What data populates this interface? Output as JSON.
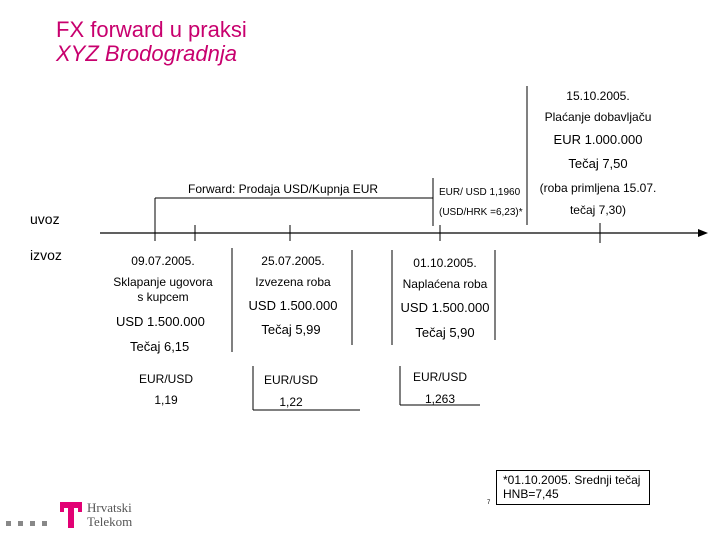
{
  "title": {
    "line1": "FX forward u praksi",
    "line2": "XYZ Brodogradnja"
  },
  "side_labels": {
    "uvoz": "uvoz",
    "izvoz": "izvoz"
  },
  "forward_label": "Forward: Prodaja USD/Kupnja EUR",
  "import_event": {
    "date": "15.10.2005.",
    "desc": "Plaćanje dobavljaču",
    "amount": "EUR 1.000.000",
    "rate": "Tečaj 7,50",
    "note_line1": "(roba primljena 15.07.",
    "note_line2": "tečaj 7,30)",
    "eur_usd": "EUR/ USD 1,1960",
    "usd_hrk": "(USD/HRK =6,23)*"
  },
  "export_events": [
    {
      "date": "09.07.2005.",
      "desc_line1": "Sklapanje ugovora",
      "desc_line2": "s kupcem",
      "amount": "USD 1.500.000",
      "rate": "Tečaj 6,15",
      "pair": "EUR/USD",
      "pair_rate": "1,19"
    },
    {
      "date": "25.07.2005.",
      "desc_line1": "Izvezena roba",
      "amount": "USD 1.500.000",
      "rate": "Tečaj 5,99",
      "pair": "EUR/USD",
      "pair_rate": "1,22"
    },
    {
      "date": "01.10.2005.",
      "desc_line1": "Naplaćena roba",
      "amount": "USD 1.500.000",
      "rate": "Tečaj 5,90",
      "pair": "EUR/USD",
      "pair_rate": "1,263"
    }
  ],
  "footnote": "*01.10.2005. Srednji tečaj HNB=7,45",
  "page_number": "7",
  "logo": {
    "line1": "Hrvatski",
    "line2": "Telekom",
    "color": "#e20074"
  }
}
